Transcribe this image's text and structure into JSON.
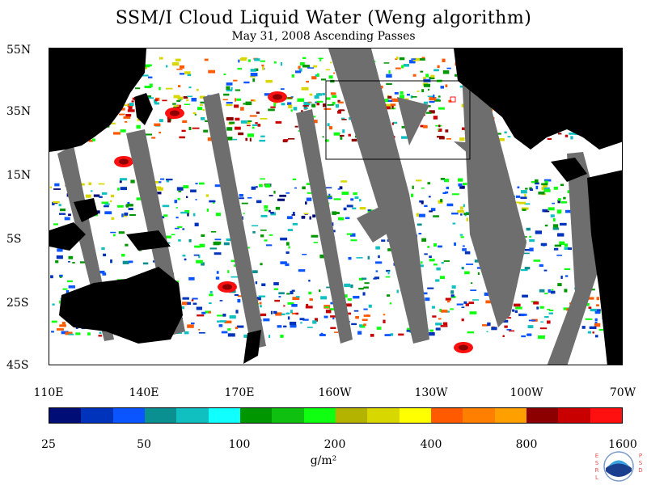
{
  "title": "SSM/I Cloud Liquid Water (Weng algorithm)",
  "subtitle": "May 31, 2008  Ascending Passes",
  "y_axis_labels": [
    "55N",
    "35N",
    "15N",
    "5S",
    "25S",
    "45S"
  ],
  "x_axis_labels": [
    "110E",
    "140E",
    "170E",
    "160W",
    "130W",
    "100W",
    "70W"
  ],
  "colorbar": {
    "colors": [
      "#000d77",
      "#0033bb",
      "#0a55ff",
      "#0a9090",
      "#10c0c0",
      "#10ffff",
      "#009600",
      "#10c010",
      "#10ff10",
      "#b4b400",
      "#d8d800",
      "#ffff00",
      "#ff5a00",
      "#ff7f00",
      "#ffa000",
      "#8c0000",
      "#c80000",
      "#ff1010"
    ],
    "tick_labels": [
      "25",
      "50",
      "100",
      "200",
      "400",
      "800",
      "1600"
    ],
    "unit": "g/m²"
  },
  "logo": {
    "left_letters": "ESRL",
    "right_letters": "PSD",
    "center_text": "NOAA"
  },
  "map_colors": {
    "land": "#000000",
    "missing_swath": "#6e6e6e",
    "inset_box": "#000000"
  }
}
